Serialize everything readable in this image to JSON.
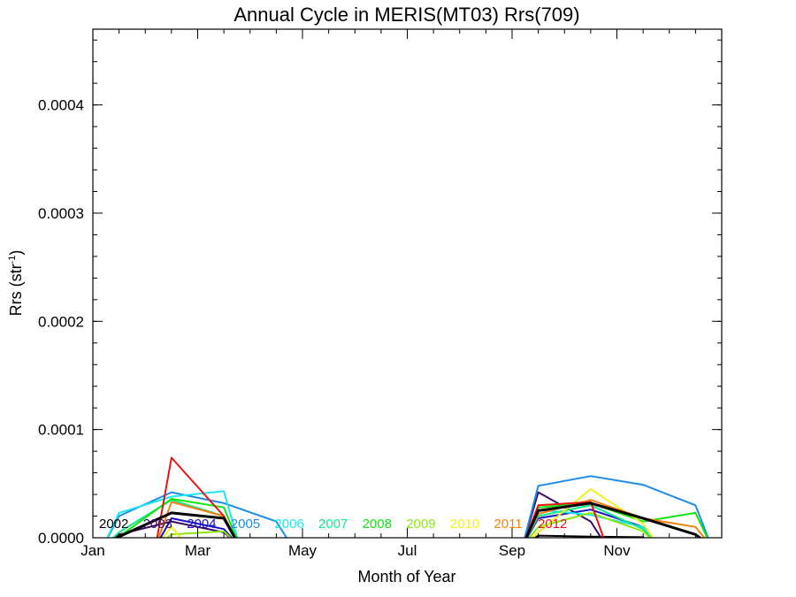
{
  "chart_data": {
    "type": "line",
    "title": "Annual Cycle in MERIS(MT03) Rrs(709)",
    "xlabel": "Month of Year",
    "ylabel_main": "Rrs (str",
    "ylabel_sup": "-1",
    "ylabel_close": ")",
    "xlim": [
      0,
      12
    ],
    "ylim": [
      0,
      0.00047
    ],
    "x_ticks": [
      {
        "value": 0,
        "label": "Jan"
      },
      {
        "value": 2,
        "label": "Mar"
      },
      {
        "value": 4,
        "label": "May"
      },
      {
        "value": 6,
        "label": "Jul"
      },
      {
        "value": 8,
        "label": "Sep"
      },
      {
        "value": 10,
        "label": "Nov"
      }
    ],
    "y_ticks": [
      {
        "value": 0,
        "label": "0.0000"
      },
      {
        "value": 0.0001,
        "label": "0.0001"
      },
      {
        "value": 0.0002,
        "label": "0.0002"
      },
      {
        "value": 0.0003,
        "label": "0.0003"
      },
      {
        "value": 0.0004,
        "label": "0.0004"
      }
    ],
    "x_minor_step": 0.5,
    "y_minor_step": 2e-05,
    "grid": false,
    "legend_position": "bottom-inside",
    "x": [
      0.5,
      1.5,
      2.5,
      3.5,
      4.5,
      5.5,
      6.5,
      7.5,
      8.5,
      9.5,
      10.5,
      11.5
    ],
    "series": [
      {
        "name": "2002",
        "color": "#000000",
        "values": [
          null,
          null,
          null,
          null,
          null,
          null,
          null,
          null,
          2e-06,
          1e-06,
          5e-07,
          null
        ]
      },
      {
        "name": "2003",
        "color": "#3b0a64",
        "values": [
          3e-06,
          1.5e-05,
          5e-06,
          null,
          null,
          null,
          null,
          null,
          4.2e-05,
          1.5e-05,
          null,
          null
        ]
      },
      {
        "name": "2004",
        "color": "#1a10c8",
        "values": [
          null,
          1.8e-05,
          8e-06,
          null,
          null,
          null,
          null,
          null,
          1.8e-05,
          2.6e-05,
          1e-05,
          null
        ]
      },
      {
        "name": "2005",
        "color": "#1e8ce6",
        "values": [
          2e-05,
          4.2e-05,
          3.2e-05,
          1.5e-05,
          null,
          null,
          null,
          null,
          4.8e-05,
          5.7e-05,
          4.9e-05,
          3e-05
        ]
      },
      {
        "name": "2006",
        "color": "#1ee6f0",
        "values": [
          2.3e-05,
          3.8e-05,
          4.3e-05,
          null,
          null,
          null,
          null,
          null,
          2.6e-05,
          2.1e-05,
          1e-05,
          null
        ]
      },
      {
        "name": "2007",
        "color": "#14e68c",
        "values": [
          5e-06,
          3.5e-05,
          2e-05,
          null,
          null,
          null,
          null,
          null,
          2e-05,
          3e-05,
          8e-06,
          null
        ]
      },
      {
        "name": "2008",
        "color": "#0ee60e",
        "values": [
          1e-06,
          3.6e-05,
          2.8e-05,
          null,
          null,
          null,
          null,
          null,
          2.8e-05,
          3.2e-05,
          1.5e-05,
          2.3e-05
        ]
      },
      {
        "name": "2009",
        "color": "#8ce614",
        "values": [
          null,
          3e-06,
          6e-06,
          null,
          null,
          null,
          null,
          null,
          1e-05,
          2.3e-05,
          6e-06,
          null
        ]
      },
      {
        "name": "2010",
        "color": "#f0f01e",
        "values": [
          null,
          1e-05,
          null,
          null,
          null,
          null,
          null,
          null,
          5e-06,
          4.5e-05,
          1.3e-05,
          null
        ]
      },
      {
        "name": "2011",
        "color": "#f08214",
        "values": [
          null,
          3.3e-05,
          2e-05,
          null,
          null,
          null,
          null,
          null,
          2.2e-05,
          3.5e-05,
          1.8e-05,
          1e-05
        ]
      },
      {
        "name": "2012",
        "color": "#e61414",
        "values": [
          null,
          7.4e-05,
          2e-05,
          null,
          null,
          null,
          null,
          null,
          3e-05,
          3.3e-05,
          null,
          null
        ]
      },
      {
        "name": "",
        "color": "#000000",
        "width": 3,
        "values": [
          1e-06,
          2.3e-05,
          1.8e-05,
          null,
          null,
          null,
          null,
          null,
          2.5e-05,
          3.2e-05,
          1.8e-05,
          3e-06
        ]
      }
    ]
  }
}
